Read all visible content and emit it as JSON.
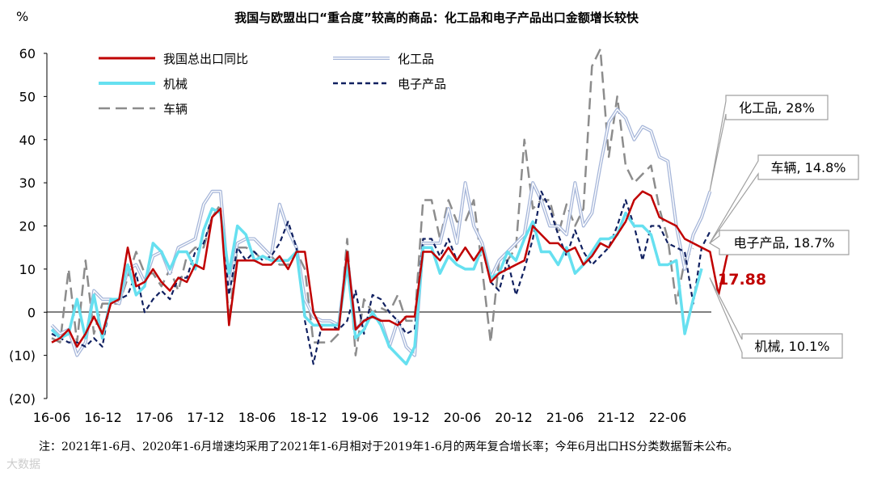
{
  "chart_data": {
    "type": "line",
    "title": "我国与欧盟出口“重合度”较高的商品：化工品和电子产品出口金额增长较快",
    "ylabel": "%",
    "ylim": [
      -20,
      60
    ],
    "yticks": [
      "60",
      "50",
      "40",
      "30",
      "20",
      "10",
      "0",
      "(10)",
      "(20)"
    ],
    "xticks": [
      "16-06",
      "16-12",
      "17-06",
      "17-12",
      "18-06",
      "18-12",
      "19-06",
      "19-12",
      "20-06",
      "20-12",
      "21-06",
      "21-12",
      "22-06"
    ],
    "series": [
      {
        "name": "我国总出口同比",
        "color": "#c00000",
        "style": "solid",
        "values": [
          -7,
          -6,
          -4,
          -8,
          -5,
          -1,
          -5,
          2,
          3,
          15,
          6,
          7,
          10,
          7,
          5,
          8,
          7,
          11,
          10,
          22,
          24,
          -3,
          12,
          12,
          12,
          11,
          11,
          13,
          10,
          14,
          14,
          0,
          -4,
          -4,
          -4,
          14,
          -4,
          -2,
          -1,
          -2,
          -2,
          -3,
          -1,
          -1,
          14,
          14,
          12,
          15,
          12,
          15,
          12,
          15,
          7,
          9,
          10,
          11,
          12,
          20,
          18,
          16,
          16,
          14,
          15,
          11,
          13,
          16,
          15,
          18,
          21,
          26,
          28,
          27,
          22,
          21,
          20,
          17,
          16,
          15,
          14,
          4,
          13,
          18,
          17.9
        ]
      },
      {
        "name": "化工品",
        "color": "#a6b6d9",
        "style": "double",
        "values": [
          -3,
          -5,
          -4,
          -10,
          -7,
          5,
          3,
          3,
          2,
          10,
          11,
          7,
          13,
          14,
          9,
          15,
          16,
          17,
          25,
          28,
          28,
          5,
          16,
          17,
          17,
          15,
          13,
          25,
          19,
          15,
          3,
          -1,
          -2,
          -2,
          -3,
          13,
          -4,
          -2,
          -1,
          -2,
          -8,
          -2,
          -8,
          -10,
          16,
          16,
          16,
          24,
          16,
          30,
          20,
          16,
          8,
          12,
          14,
          16,
          18,
          30,
          26,
          20,
          20,
          18,
          30,
          20,
          23,
          34,
          44,
          47,
          45,
          40,
          43,
          42,
          36,
          35,
          20,
          10,
          18,
          22,
          28
        ]
      },
      {
        "name": "机械",
        "color": "#66e0f0",
        "style": "solid",
        "values": [
          -4,
          -6,
          -5,
          3,
          -6,
          4,
          -6,
          3,
          3,
          11,
          4,
          6,
          16,
          14,
          10,
          14,
          14,
          10,
          19,
          24,
          23,
          9,
          20,
          18,
          12,
          13,
          12,
          12,
          12,
          14,
          -1,
          -3,
          -3,
          -3,
          -3,
          11,
          -6,
          -4,
          0,
          -3,
          -8,
          -10,
          -12,
          -8,
          15,
          15,
          9,
          13,
          11,
          10,
          10,
          15,
          8,
          9,
          14,
          12,
          17,
          21,
          14,
          14,
          11,
          15,
          9,
          11,
          14,
          17,
          17,
          18,
          23,
          20,
          20,
          18,
          11,
          11,
          12,
          -5,
          3,
          10.1
        ]
      },
      {
        "name": "电子产品",
        "color": "#102060",
        "style": "dash",
        "values": [
          -5,
          -6,
          -7,
          -7,
          -8,
          -6,
          -8,
          3,
          3,
          4,
          9,
          0,
          3,
          5,
          3,
          8,
          8,
          14,
          16,
          22,
          24,
          4,
          15,
          12,
          14,
          12,
          13,
          16,
          21,
          15,
          -2,
          -12,
          -3,
          -3,
          -4,
          -2,
          5,
          -5,
          4,
          3,
          0,
          -2,
          -5,
          -4,
          17,
          17,
          13,
          17,
          12,
          15,
          12,
          15,
          7,
          5,
          12,
          4,
          10,
          17,
          28,
          24,
          18,
          13,
          19,
          14,
          11,
          13,
          15,
          20,
          26,
          20,
          12,
          20,
          20,
          16,
          15,
          14,
          2,
          15,
          18.7
        ]
      },
      {
        "name": "车辆",
        "color": "#8c8c8c",
        "style": "longdash",
        "values": [
          -6,
          -7,
          10,
          -7,
          12,
          -5,
          2,
          2,
          2,
          8,
          14,
          9,
          9,
          6,
          10,
          5,
          13,
          15,
          15,
          22,
          25,
          -2,
          15,
          15,
          14,
          12,
          13,
          11,
          11,
          14,
          10,
          -7,
          -7,
          -7,
          -5,
          17,
          -10,
          3,
          0,
          1,
          0,
          4,
          -2,
          -2,
          26,
          26,
          17,
          26,
          21,
          21,
          26,
          10,
          -7,
          12,
          12,
          15,
          40,
          24,
          26,
          26,
          18,
          25,
          20,
          24,
          57,
          61,
          36,
          50,
          34,
          30,
          32,
          34,
          24,
          17,
          2,
          12,
          14.8
        ]
      }
    ],
    "annotations": [
      {
        "text": "化工品, 28%",
        "series": "化工品"
      },
      {
        "text": "车辆, 14.8%",
        "series": "车辆"
      },
      {
        "text": "电子产品, 18.7%",
        "series": "电子产品"
      },
      {
        "text": "17.88",
        "series": "我国总出口同比",
        "color": "#c00000"
      },
      {
        "text": "机械, 10.1%",
        "series": "机械"
      }
    ]
  },
  "note": "注：2021年1-6月、2020年1-6月增速均采用了2021年1-6月相对于2019年1-6月的两年复合增长率；今年6月出口HS分类数据暂未公布。",
  "watermark": "大数据"
}
